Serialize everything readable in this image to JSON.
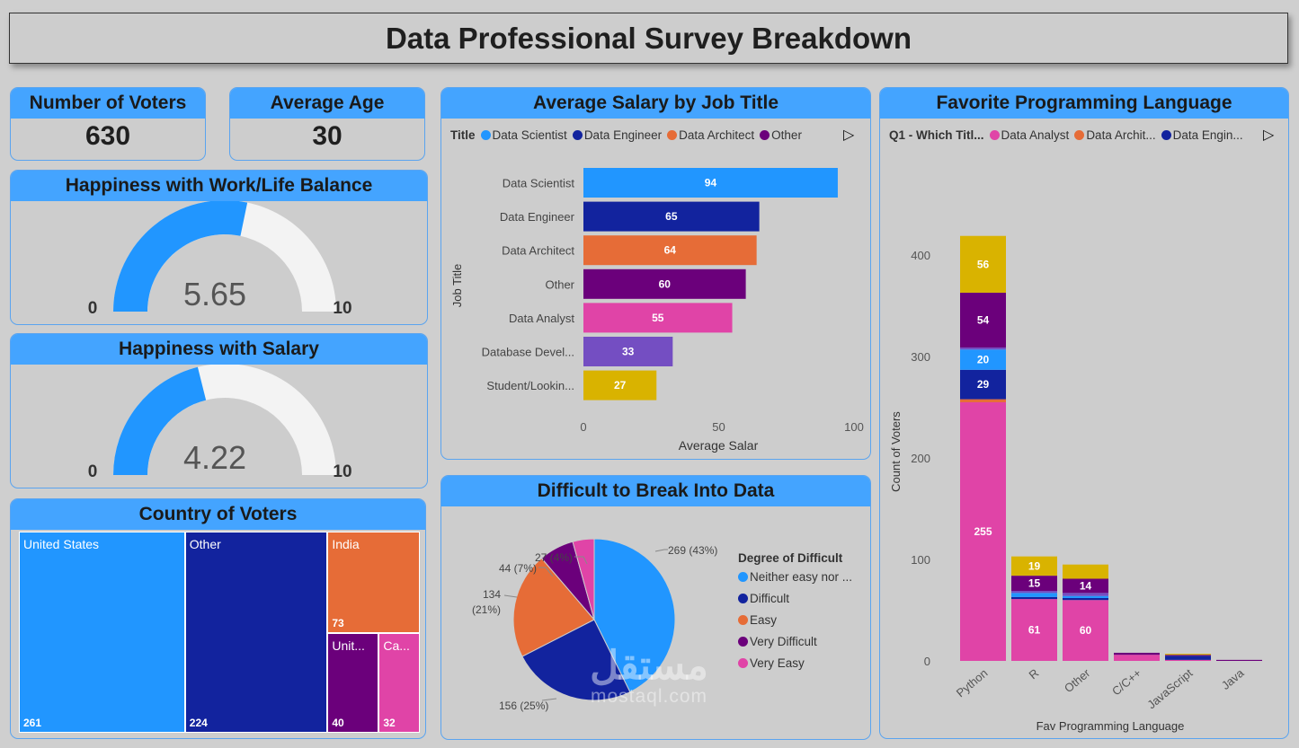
{
  "dashboard": {
    "title": "Data Professional Survey Breakdown"
  },
  "kpis": {
    "voters": {
      "title": "Number of Voters",
      "value": "630"
    },
    "age": {
      "title": "Average Age",
      "value": "30"
    }
  },
  "gauges": [
    {
      "title": "Happiness with Work/Life Balance",
      "value": 5.65,
      "display": "5.65",
      "min": "0",
      "max": "10",
      "color": "#2196ff"
    },
    {
      "title": "Happiness with Salary",
      "value": 4.22,
      "display": "4.22",
      "min": "0",
      "max": "10",
      "color": "#2196ff"
    }
  ],
  "colors": {
    "header": "#44a4ff",
    "background": "#cfcfcf"
  },
  "treemap": {
    "title": "Country of Voters",
    "items": [
      {
        "name": "United States",
        "value": 261,
        "color": "#2196ff"
      },
      {
        "name": "Other",
        "value": 224,
        "color": "#12239e"
      },
      {
        "name": "India",
        "value": 73,
        "color": "#e66c37"
      },
      {
        "name": "Unit...",
        "value": 40,
        "color": "#6b007b"
      },
      {
        "name": "Ca...",
        "value": 32,
        "color": "#e044a7"
      }
    ]
  },
  "salary": {
    "title": "Average Salary by Job Title",
    "legend_title": "Title",
    "legend": [
      {
        "name": "Data Scientist",
        "color": "#2196ff"
      },
      {
        "name": "Data Engineer",
        "color": "#12239e"
      },
      {
        "name": "Data Architect",
        "color": "#e66c37"
      },
      {
        "name": "Other",
        "color": "#6b007b"
      }
    ]
  },
  "pie": {
    "title": "Difficult to Break Into Data",
    "legend_title": "Degree of Difficult",
    "legend": [
      {
        "name": "Neither easy nor ...",
        "color": "#2196ff"
      },
      {
        "name": "Difficult",
        "color": "#12239e"
      },
      {
        "name": "Easy",
        "color": "#e66c37"
      },
      {
        "name": "Very Difficult",
        "color": "#6b007b"
      },
      {
        "name": "Very Easy",
        "color": "#e044a7"
      }
    ],
    "labels": [
      "269 (43%)",
      "156 (25%)",
      "134",
      "(21%)",
      "44 (7%)",
      "27 (4%)"
    ]
  },
  "lang": {
    "title": "Favorite Programming Language",
    "legend_title": "Q1 - Which Titl...",
    "legend": [
      {
        "name": "Data Analyst",
        "color": "#e044a7"
      },
      {
        "name": "Data Archit...",
        "color": "#e66c37"
      },
      {
        "name": "Data Engin...",
        "color": "#12239e"
      }
    ]
  },
  "watermark": {
    "arabic": "مستقل",
    "latin": "mostaql.com"
  },
  "chart_data": [
    {
      "type": "bar",
      "orientation": "horizontal",
      "title": "Average Salary by Job Title",
      "xlabel": "Average Salar",
      "ylabel": "Job Title",
      "categories": [
        "Data Scientist",
        "Data Engineer",
        "Data Architect",
        "Other",
        "Data Analyst",
        "Database Devel...",
        "Student/Lookin..."
      ],
      "values": [
        94,
        65,
        64,
        60,
        55,
        33,
        27
      ],
      "colors": [
        "#2196ff",
        "#12239e",
        "#e66c37",
        "#6b007b",
        "#e044a7",
        "#744ec2",
        "#d9b300"
      ],
      "xlim": [
        0,
        100
      ],
      "xticks": [
        "0",
        "50",
        "100"
      ],
      "grid": false,
      "legend_position": "top-left"
    },
    {
      "type": "pie",
      "title": "Difficult to Break Into Data",
      "categories": [
        "Neither easy nor ...",
        "Difficult",
        "Easy",
        "Very Difficult",
        "Very Easy"
      ],
      "values": [
        269,
        156,
        134,
        44,
        27
      ],
      "percents": [
        43,
        25,
        21,
        7,
        4
      ],
      "colors": [
        "#2196ff",
        "#12239e",
        "#e66c37",
        "#6b007b",
        "#e044a7"
      ],
      "legend_position": "right"
    },
    {
      "type": "bar",
      "stacked": true,
      "title": "Favorite Programming Language",
      "xlabel": "Fav Programming Language",
      "ylabel": "Count of Voters",
      "categories": [
        "Python",
        "R",
        "Other",
        "C/C++",
        "JavaScript",
        "Java"
      ],
      "ylim": [
        0,
        440
      ],
      "yticks": [
        "0",
        "100",
        "200",
        "300",
        "400"
      ],
      "grid": false,
      "legend_position": "top-left",
      "series": [
        {
          "name": "Data Analyst",
          "color": "#e044a7",
          "values": [
            255,
            61,
            60,
            6,
            1,
            0
          ],
          "labels": [
            "255",
            "61",
            "60",
            "",
            "",
            ""
          ]
        },
        {
          "name": "Data Archit...",
          "color": "#e66c37",
          "values": [
            3,
            0,
            0,
            0,
            0,
            0
          ],
          "labels": [
            "",
            "",
            "",
            "",
            "",
            ""
          ]
        },
        {
          "name": "Data Engin...",
          "color": "#12239e",
          "values": [
            29,
            2,
            2,
            0,
            4,
            0
          ],
          "labels": [
            "29",
            "",
            "",
            "",
            "",
            ""
          ]
        },
        {
          "color": "#2196ff",
          "values": [
            20,
            4,
            2,
            0,
            0,
            0
          ],
          "labels": [
            "20",
            "",
            "",
            "",
            "",
            ""
          ]
        },
        {
          "color": "#744ec2",
          "values": [
            2,
            2,
            3,
            0,
            0,
            0
          ],
          "labels": [
            "",
            "",
            "",
            "",
            "",
            ""
          ]
        },
        {
          "color": "#6b007b",
          "values": [
            54,
            15,
            14,
            2,
            1,
            1
          ],
          "labels": [
            "54",
            "15",
            "14",
            "",
            "",
            ""
          ]
        },
        {
          "color": "#d9b300",
          "values": [
            56,
            19,
            14,
            0,
            1,
            0
          ],
          "labels": [
            "56",
            "19",
            "",
            "",
            "",
            ""
          ]
        }
      ]
    }
  ]
}
